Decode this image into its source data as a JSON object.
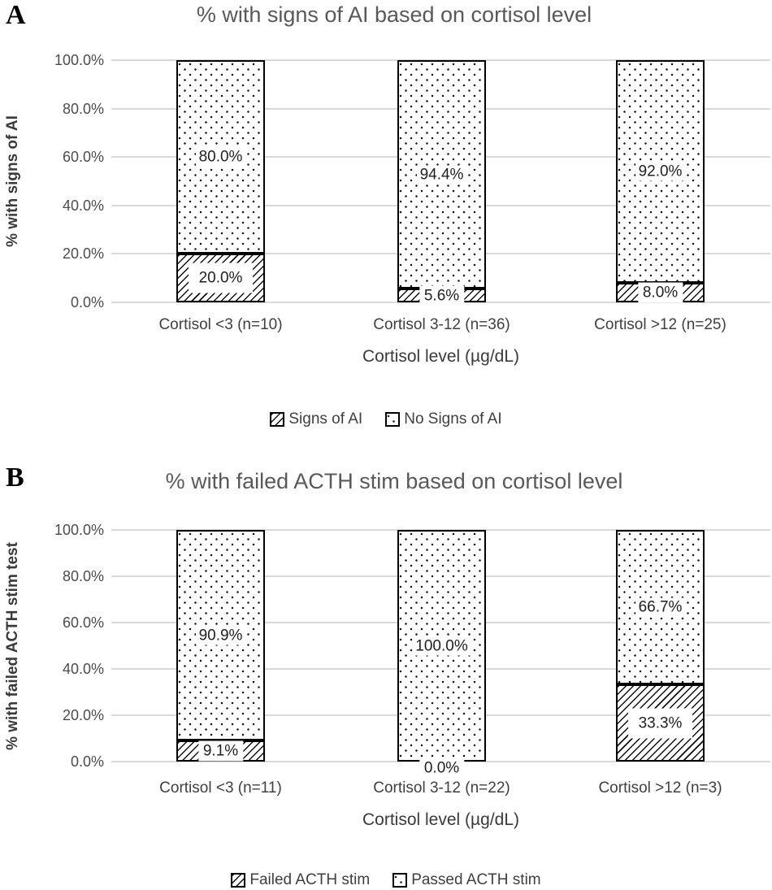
{
  "colors": {
    "title_text": "#595959",
    "axis_tick_text": "#4c4c4c",
    "category_text": "#3f3f3f",
    "gridline": "#d9d9d9",
    "bar_border": "#000000",
    "pattern_ink": "#161616",
    "data_label_text": "#1f1f1f",
    "panel_letter": "#000000"
  },
  "chart_data": [
    {
      "panel": "A",
      "type": "bar",
      "stacked": true,
      "orientation": "vertical",
      "title": "% with signs of AI based on cortisol level",
      "ylabel": "% with signs of AI",
      "xlabel": "Cortisol level (µg/dL)",
      "ylim": [
        0,
        100
      ],
      "yticks": [
        "100.0%",
        "80.0%",
        "60.0%",
        "40.0%",
        "20.0%",
        "0.0%"
      ],
      "grid": true,
      "legend_position": "bottom",
      "categories": [
        "Cortisol <3 (n=10)",
        "Cortisol 3-12 (n=36)",
        "Cortisol >12 (n=25)"
      ],
      "series": [
        {
          "name": "Signs of AI",
          "pattern": "diagonal-hatch",
          "values": [
            20.0,
            5.6,
            8.0
          ],
          "labels": [
            "20.0%",
            "5.6%",
            "8.0%"
          ]
        },
        {
          "name": "No Signs of AI",
          "pattern": "dots",
          "values": [
            80.0,
            94.4,
            92.0
          ],
          "labels": [
            "80.0%",
            "94.4%",
            "92.0%"
          ]
        }
      ]
    },
    {
      "panel": "B",
      "type": "bar",
      "stacked": true,
      "orientation": "vertical",
      "title": "% with failed ACTH stim based on cortisol level",
      "ylabel": "% with failed ACTH stim test",
      "xlabel": "Cortisol level (µg/dL)",
      "ylim": [
        0,
        100
      ],
      "yticks": [
        "100.0%",
        "80.0%",
        "60.0%",
        "40.0%",
        "20.0%",
        "0.0%"
      ],
      "grid": true,
      "legend_position": "bottom",
      "categories": [
        "Cortisol <3 (n=11)",
        "Cortisol 3-12 (n=22)",
        "Cortisol >12 (n=3)"
      ],
      "series": [
        {
          "name": "Failed ACTH stim",
          "pattern": "diagonal-hatch",
          "values": [
            9.1,
            0.0,
            33.3
          ],
          "labels": [
            "9.1%",
            "0.0%",
            "33.3%"
          ]
        },
        {
          "name": "Passed ACTH stim",
          "pattern": "dots",
          "values": [
            90.9,
            100.0,
            66.7
          ],
          "labels": [
            "90.9%",
            "100.0%",
            "66.7%"
          ]
        }
      ]
    }
  ]
}
